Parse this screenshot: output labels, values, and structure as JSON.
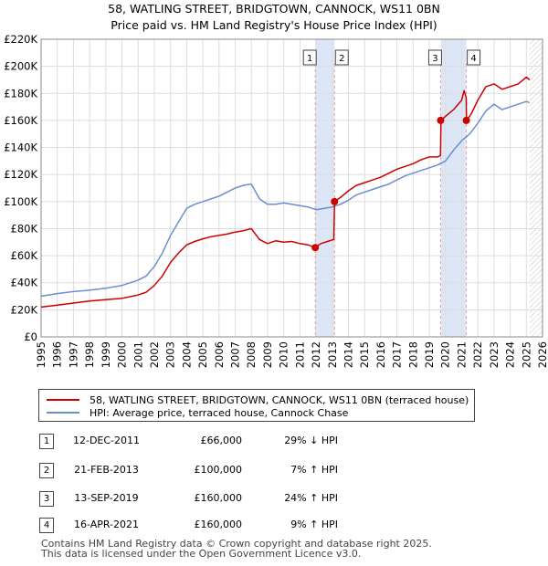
{
  "title_line1": "58, WATLING STREET, BRIDGTOWN, CANNOCK, WS11 0BN",
  "title_line2": "Price paid vs. HM Land Registry's House Price Index (HPI)",
  "colors": {
    "property": "#cc0000",
    "hpi": "#6a8fcf",
    "highlight": "#dde6f6",
    "grid": "#dddddd"
  },
  "legend": {
    "property_label": "58, WATLING STREET, BRIDGTOWN, CANNOCK, WS11 0BN (terraced house)",
    "hpi_label": "HPI: Average price, terraced house, Cannock Chase"
  },
  "sales": [
    {
      "num": "1",
      "date": "12-DEC-2011",
      "price": "£66,000",
      "hpi": "29% ↓ HPI"
    },
    {
      "num": "2",
      "date": "21-FEB-2013",
      "price": "£100,000",
      "hpi": "7% ↑ HPI"
    },
    {
      "num": "3",
      "date": "13-SEP-2019",
      "price": "£160,000",
      "hpi": "24% ↑ HPI"
    },
    {
      "num": "4",
      "date": "16-APR-2021",
      "price": "£160,000",
      "hpi": "9% ↑ HPI"
    }
  ],
  "footer_line1": "Contains HM Land Registry data © Crown copyright and database right 2025.",
  "footer_line2": "This data is licensed under the Open Government Licence v3.0.",
  "chart_data": {
    "type": "line",
    "title": "58, WATLING STREET, BRIDGTOWN, CANNOCK, WS11 0BN",
    "subtitle": "Price paid vs. HM Land Registry's House Price Index (HPI)",
    "xlabel": "",
    "ylabel": "",
    "xlim": [
      1995,
      2026
    ],
    "ylim": [
      0,
      220000
    ],
    "x_ticks": [
      "1995",
      "1996",
      "1997",
      "1998",
      "1999",
      "2000",
      "2001",
      "2002",
      "2003",
      "2004",
      "2005",
      "2006",
      "2007",
      "2008",
      "2009",
      "2010",
      "2011",
      "2012",
      "2013",
      "2014",
      "2015",
      "2016",
      "2017",
      "2018",
      "2019",
      "2020",
      "2021",
      "2022",
      "2023",
      "2024",
      "2025",
      "2026"
    ],
    "y_ticks": [
      {
        "value": 0,
        "label": "£0"
      },
      {
        "value": 20000,
        "label": "£20K"
      },
      {
        "value": 40000,
        "label": "£40K"
      },
      {
        "value": 60000,
        "label": "£60K"
      },
      {
        "value": 80000,
        "label": "£80K"
      },
      {
        "value": 100000,
        "label": "£100K"
      },
      {
        "value": 120000,
        "label": "£120K"
      },
      {
        "value": 140000,
        "label": "£140K"
      },
      {
        "value": 160000,
        "label": "£160K"
      },
      {
        "value": 180000,
        "label": "£180K"
      },
      {
        "value": 200000,
        "label": "£200K"
      },
      {
        "value": 220000,
        "label": "£220K"
      }
    ],
    "grid": true,
    "legend_position": "bottom",
    "series": [
      {
        "name": "58, WATLING STREET, BRIDGTOWN, CANNOCK, WS11 0BN (terraced house)",
        "x": [
          1995.0,
          1996.0,
          1997.0,
          1998.0,
          1999.0,
          2000.0,
          2001.0,
          2001.5,
          2002.0,
          2002.5,
          2003.0,
          2003.5,
          2004.0,
          2004.5,
          2005.0,
          2005.5,
          2006.0,
          2006.5,
          2007.0,
          2007.5,
          2008.0,
          2008.5,
          2009.0,
          2009.5,
          2010.0,
          2010.5,
          2011.0,
          2011.5,
          2011.95,
          2012.3,
          2012.7,
          2013.1,
          2013.14,
          2013.5,
          2014.0,
          2014.5,
          2015.0,
          2015.5,
          2016.0,
          2016.5,
          2017.0,
          2017.5,
          2018.0,
          2018.5,
          2019.0,
          2019.5,
          2019.69,
          2019.72,
          2020.0,
          2020.5,
          2021.0,
          2021.15,
          2021.28,
          2021.3,
          2021.6,
          2022.0,
          2022.5,
          2023.0,
          2023.5,
          2024.0,
          2024.5,
          2025.0,
          2025.2
        ],
        "values": [
          22000,
          23500,
          25000,
          26500,
          27500,
          28500,
          31000,
          33000,
          38000,
          45000,
          55000,
          62000,
          68000,
          70500,
          72500,
          74000,
          75000,
          76000,
          77500,
          78500,
          80000,
          72000,
          69000,
          71000,
          70000,
          70500,
          69000,
          68000,
          66000,
          69000,
          70500,
          72000,
          100000,
          103000,
          108000,
          112000,
          114000,
          116000,
          118000,
          121000,
          124000,
          126000,
          128000,
          131000,
          133000,
          133000,
          134000,
          160000,
          163000,
          168000,
          175000,
          182000,
          177000,
          160000,
          165000,
          175000,
          185000,
          187000,
          183000,
          185000,
          187000,
          192000,
          190000
        ]
      },
      {
        "name": "HPI: Average price, terraced house, Cannock Chase",
        "x": [
          1995.0,
          1996.0,
          1997.0,
          1998.0,
          1999.0,
          2000.0,
          2001.0,
          2001.5,
          2002.0,
          2002.5,
          2003.0,
          2003.5,
          2004.0,
          2004.5,
          2005.0,
          2005.5,
          2006.0,
          2006.5,
          2007.0,
          2007.5,
          2008.0,
          2008.5,
          2009.0,
          2009.5,
          2010.0,
          2010.5,
          2011.0,
          2011.5,
          2012.0,
          2012.5,
          2013.0,
          2013.5,
          2014.0,
          2014.5,
          2015.0,
          2015.5,
          2016.0,
          2016.5,
          2017.0,
          2017.5,
          2018.0,
          2018.5,
          2019.0,
          2019.5,
          2020.0,
          2020.5,
          2021.0,
          2021.5,
          2022.0,
          2022.5,
          2023.0,
          2023.5,
          2024.0,
          2024.5,
          2025.0,
          2025.2
        ],
        "values": [
          30000,
          32000,
          33500,
          34500,
          36000,
          38000,
          42000,
          45000,
          52000,
          62000,
          75000,
          85000,
          95000,
          98000,
          100000,
          102000,
          104000,
          107000,
          110000,
          112000,
          113000,
          102000,
          98000,
          98000,
          99000,
          98000,
          97000,
          96000,
          94000,
          95000,
          96000,
          98000,
          101000,
          105000,
          107000,
          109000,
          111000,
          113000,
          116000,
          119000,
          121000,
          123000,
          125000,
          127000,
          130000,
          138000,
          145000,
          150000,
          158000,
          167000,
          172000,
          168000,
          170000,
          172000,
          174000,
          173000
        ]
      }
    ],
    "sale_points": [
      {
        "label": "1",
        "x": 2011.95,
        "value": 66000
      },
      {
        "label": "2",
        "x": 2013.14,
        "value": 100000
      },
      {
        "label": "3",
        "x": 2019.7,
        "value": 160000
      },
      {
        "label": "4",
        "x": 2021.29,
        "value": 160000
      }
    ],
    "highlight_ranges": [
      [
        2011.95,
        2013.14
      ],
      [
        2019.7,
        2021.29
      ]
    ],
    "annotations": [
      "1",
      "2",
      "3",
      "4"
    ]
  }
}
